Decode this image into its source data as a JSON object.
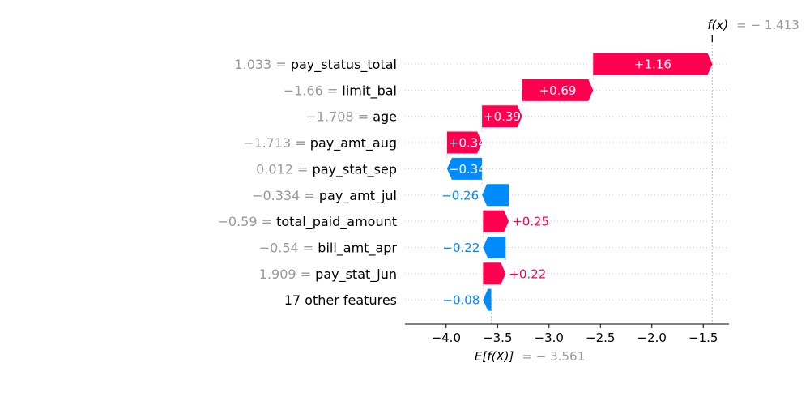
{
  "chart_data": {
    "type": "bar",
    "subtype": "shap-waterfall",
    "title": "",
    "xlabel": "",
    "ylabel": "",
    "xlim": [
      -4.4,
      -1.25
    ],
    "x_ticks": [
      -4.0,
      -3.5,
      -3.0,
      -2.5,
      -2.0,
      -1.5
    ],
    "x_tick_labels": [
      "−4.0",
      "−3.5",
      "−3.0",
      "−2.5",
      "−2.0",
      "−1.5"
    ],
    "base_value": -3.561,
    "output_value": -1.413,
    "base_label": {
      "prefix": "E[f(X)]",
      "suffix": "= − 3.561"
    },
    "output_label": {
      "prefix": "f(x)",
      "suffix": "= − 1.413"
    },
    "grid": "dotted-rows",
    "features": [
      {
        "value_text": "1.033 =",
        "name": "pay_status_total",
        "contribution": 1.16,
        "label": "+1.16"
      },
      {
        "value_text": "−1.66 =",
        "name": "limit_bal",
        "contribution": 0.69,
        "label": "+0.69"
      },
      {
        "value_text": "−1.708 =",
        "name": "age",
        "contribution": 0.39,
        "label": "+0.39"
      },
      {
        "value_text": "−1.713 =",
        "name": "pay_amt_aug",
        "contribution": 0.34,
        "label": "+0.34"
      },
      {
        "value_text": "0.012 =",
        "name": "pay_stat_sep",
        "contribution": -0.34,
        "label": "−0.34"
      },
      {
        "value_text": "−0.334 =",
        "name": "pay_amt_jul",
        "contribution": -0.26,
        "label": "−0.26"
      },
      {
        "value_text": "−0.59 =",
        "name": "total_paid_amount",
        "contribution": 0.25,
        "label": "+0.25"
      },
      {
        "value_text": "−0.54 =",
        "name": "bill_amt_apr",
        "contribution": -0.22,
        "label": "−0.22"
      },
      {
        "value_text": "1.909 =",
        "name": "pay_stat_jun",
        "contribution": 0.22,
        "label": "+0.22"
      },
      {
        "value_text": "",
        "name": "17 other features",
        "contribution": -0.08,
        "label": "−0.08"
      }
    ],
    "colors": {
      "positive": "#ff0051",
      "negative": "#008bfb",
      "feature_value": "#999999",
      "grid": "#cccccc"
    }
  }
}
